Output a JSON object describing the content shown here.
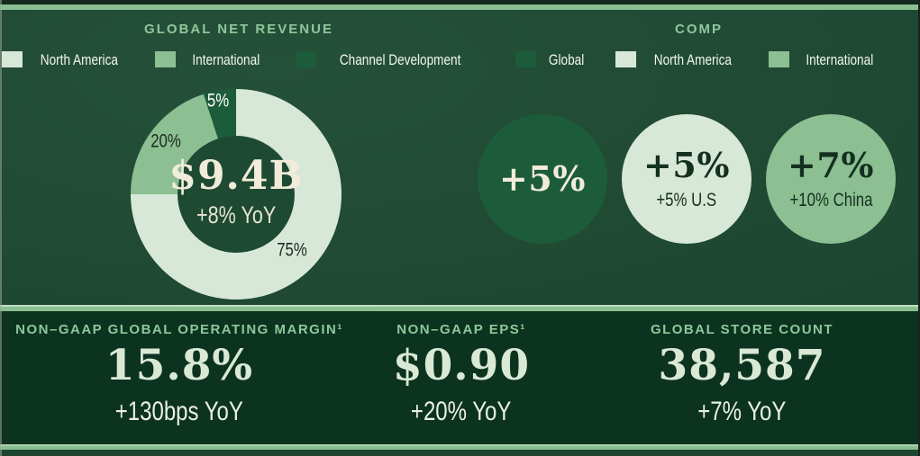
{
  "colors": {
    "hero_bg": "#1e4a33",
    "metrics_bg": "#0c3320",
    "accent_band": "#8abf92",
    "title_green": "#8fc79a",
    "cream": "#f1ecd9",
    "pale_mint": "#d8e8d8",
    "medium_green": "#8cbf92",
    "dark_green": "#1d5c3b"
  },
  "chart_data": {
    "type": "pie",
    "donut": true,
    "title": "GLOBAL NET REVENUE",
    "categories": [
      "North America",
      "International",
      "Channel Development"
    ],
    "values": [
      75,
      20,
      5
    ],
    "labels": [
      "75%",
      "20%",
      "5%"
    ],
    "colors": [
      "#d8e8d8",
      "#8cbf92",
      "#1d5c3b"
    ],
    "center_value": "$9.4B",
    "center_delta": "+8% YoY",
    "legend_position": "top"
  },
  "revenue": {
    "title": "GLOBAL NET REVENUE",
    "legend": [
      {
        "label": "North America",
        "color": "#d8e8d8"
      },
      {
        "label": "International",
        "color": "#8cbf92"
      },
      {
        "label": "Channel Development",
        "color": "#1d5c3b"
      }
    ],
    "center_value": "$9.4B",
    "center_delta": "+8% YoY"
  },
  "comp": {
    "title": "COMP",
    "legend": [
      {
        "label": "Global",
        "color": "#1d5c3b"
      },
      {
        "label": "North America",
        "color": "#d8e8d8"
      },
      {
        "label": "International",
        "color": "#8cbf92"
      }
    ],
    "circles": [
      {
        "name": "Global",
        "value": "+5%",
        "sub": "",
        "bg": "#1d5c3b",
        "fg": "#f1ecd9"
      },
      {
        "name": "North America",
        "value": "+5%",
        "sub": "+5% U.S",
        "bg": "#d8e8d8",
        "fg": "#14301f"
      },
      {
        "name": "International",
        "value": "+7%",
        "sub": "+10% China",
        "bg": "#8cbf92",
        "fg": "#14301f"
      }
    ]
  },
  "metrics": [
    {
      "label": "NON–GAAP GLOBAL OPERATING MARGIN¹",
      "value": "15.8%",
      "delta": "+130bps YoY"
    },
    {
      "label": "NON–GAAP EPS¹",
      "value": "$0.90",
      "delta": "+20% YoY"
    },
    {
      "label": "GLOBAL STORE COUNT",
      "value": "38,587",
      "delta": "+7% YoY"
    }
  ]
}
